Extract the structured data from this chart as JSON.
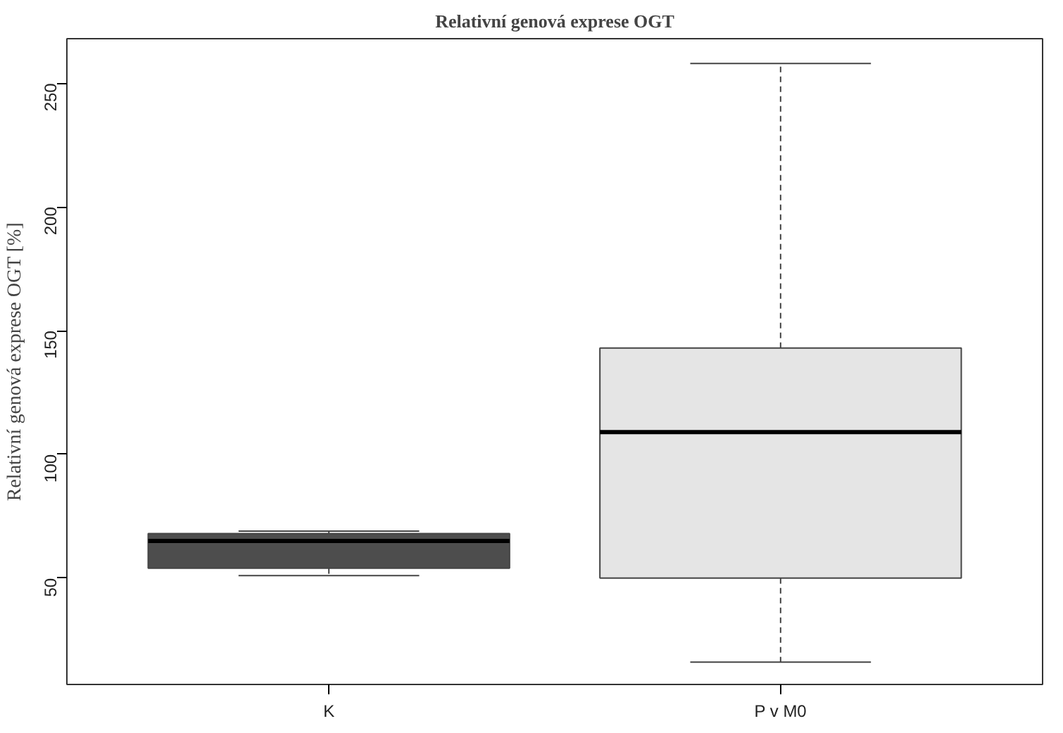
{
  "chart_data": {
    "type": "box",
    "title": "Relativní genová exprese OGT",
    "ylabel": "Relativní genová exprese OGT [%]",
    "categories": [
      "K",
      "P v M0"
    ],
    "boxes": [
      {
        "low": 51,
        "q1": 54,
        "median": 65,
        "q3": 68,
        "high": 69
      },
      {
        "low": 16,
        "q1": 50,
        "median": 109,
        "q3": 143,
        "high": 258
      }
    ],
    "colors": [
      "#4d4d4d",
      "#e5e5e5"
    ],
    "ylim": [
      7,
      268
    ],
    "yticks": [
      50,
      100,
      150,
      200,
      250
    ],
    "grid": false
  }
}
